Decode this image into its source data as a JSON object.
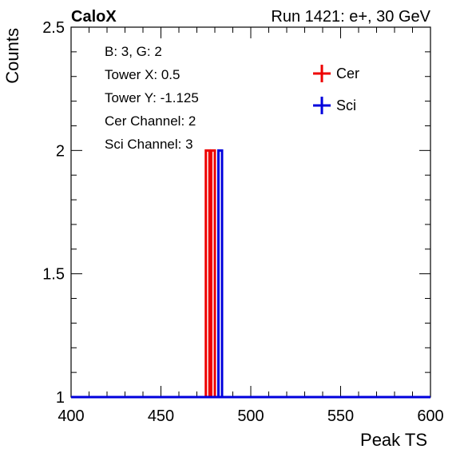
{
  "header": {
    "left_label": "CaloX",
    "right_label": "Run 1421: e+, 30 GeV"
  },
  "info_box": {
    "lines": [
      "B: 3, G: 2",
      "Tower X: 0.5",
      "Tower Y: -1.125",
      "Cer Channel: 2",
      "Sci Channel: 3"
    ]
  },
  "chart_data": {
    "type": "histogram",
    "title": "",
    "xlabel": "Peak TS",
    "ylabel": "Counts",
    "xlim": [
      400,
      600
    ],
    "ylim": [
      1,
      2.5
    ],
    "x_ticks": [
      400,
      450,
      500,
      550,
      600
    ],
    "y_ticks": [
      1,
      1.5,
      2,
      2.5
    ],
    "grid": false,
    "legend_position": "top-right",
    "series": [
      {
        "name": "Cer",
        "color": "#ee0000",
        "bins": [
          [
            475,
            477,
            2
          ],
          [
            478,
            480,
            2
          ]
        ]
      },
      {
        "name": "Sci",
        "color": "#0000dd",
        "bins": [
          [
            482,
            484,
            2
          ]
        ]
      }
    ]
  }
}
